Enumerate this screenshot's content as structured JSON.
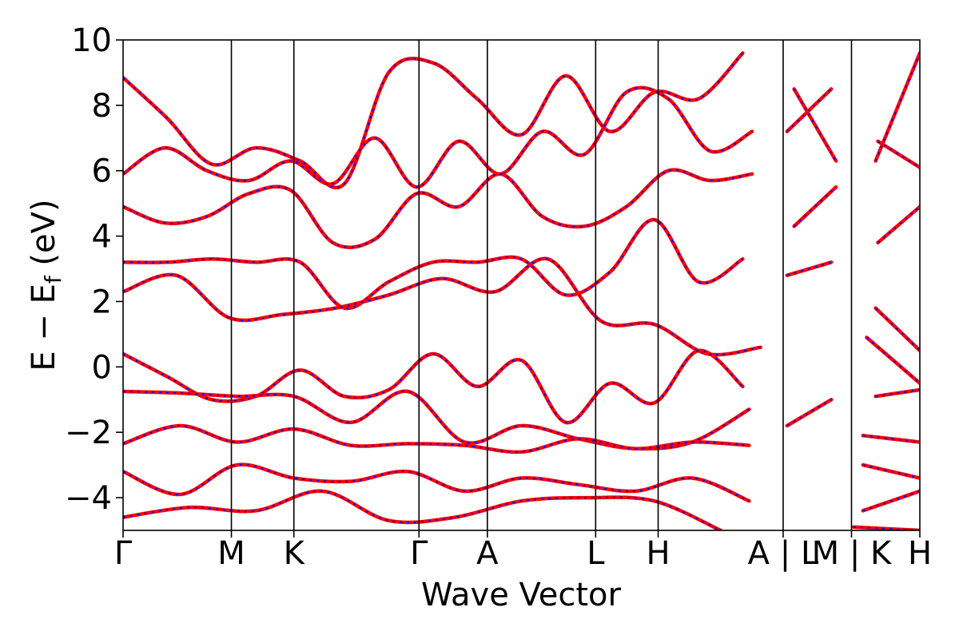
{
  "chart_data": {
    "type": "line",
    "title": "",
    "xlabel": "Wave Vector",
    "ylabel_parts": [
      "E − E",
      "f",
      " (eV)"
    ],
    "ylim": [
      -5,
      10
    ],
    "yticks": [
      10,
      8,
      6,
      4,
      2,
      0,
      -2,
      -4
    ],
    "ytick_labels": [
      "10",
      "8",
      "6",
      "4",
      "2",
      "0",
      "−2",
      "−4"
    ],
    "grid": false,
    "legend": "none",
    "kpath_labels": [
      "Γ",
      "M",
      "K",
      "Γ",
      "A",
      "L",
      "H",
      "A | L",
      "M | K",
      "H"
    ],
    "kpath_positions": [
      0.0,
      1.0,
      1.577,
      2.732,
      3.363,
      4.363,
      4.94,
      6.094,
      6.725,
      7.356
    ],
    "band_break_positions": [
      6.094,
      6.725
    ],
    "colors": {
      "band_line": "#ff0000",
      "band_dash": "#0000ff",
      "vline": "#000000"
    },
    "series": [
      {
        "name": "",
        "values_y": [
          8.85,
          7.6,
          6.2,
          6.7,
          6.3,
          5.6,
          9.0,
          9.3,
          8.2,
          7.1,
          8.9,
          7.2,
          8.4,
          8.2,
          9.6,
          7.2,
          8.5,
          6.3,
          9.6
        ]
      },
      {
        "name": "",
        "values_y": [
          5.9,
          6.7,
          6.0,
          5.7,
          6.3,
          5.6,
          7.0,
          5.5,
          6.9,
          5.9,
          7.2,
          6.5,
          8.4,
          8.2,
          6.6,
          7.2,
          8.5,
          6.3,
          6.9,
          6.1
        ]
      },
      {
        "name": "",
        "values_y": [
          4.9,
          4.4,
          4.6,
          5.3,
          5.4,
          3.8,
          3.9,
          5.3,
          4.9,
          5.9,
          4.6,
          4.3,
          4.9,
          6.0,
          5.7,
          5.9,
          4.3,
          5.5,
          3.8,
          4.9
        ]
      },
      {
        "name": "",
        "values_y": [
          3.2,
          3.2,
          3.3,
          3.2,
          3.2,
          1.8,
          2.6,
          3.2,
          3.2,
          3.3,
          2.2,
          2.9,
          4.5,
          2.6,
          3.3,
          2.8,
          3.2,
          1.8,
          0.5
        ]
      },
      {
        "name": "",
        "values_y": [
          2.3,
          2.8,
          1.5,
          1.6,
          1.8,
          2.2,
          2.7,
          2.3,
          3.3,
          1.4,
          1.3,
          0.4,
          0.6,
          1.4,
          0.9,
          -0.5
        ]
      },
      {
        "name": "",
        "values_y": [
          0.4,
          -0.3,
          -1.0,
          -0.9,
          -0.1,
          -0.9,
          -0.7,
          0.4,
          -0.6,
          0.2,
          -1.7,
          -0.5,
          -1.1,
          0.5,
          -0.6,
          -1.8,
          -1.0,
          -0.9,
          -0.7
        ]
      },
      {
        "name": "",
        "values_y": [
          -0.75,
          -0.8,
          -0.9,
          -0.9,
          -1.7,
          -0.75,
          -2.3,
          -1.8,
          -2.2,
          -2.5,
          -2.3,
          -1.3,
          -1.5,
          -2.1,
          -2.3
        ]
      },
      {
        "name": "",
        "values_y": [
          -2.35,
          -1.8,
          -2.3,
          -1.9,
          -2.4,
          -2.35,
          -2.4,
          -2.6,
          -2.2,
          -2.5,
          -2.3,
          -2.4,
          -2.8,
          -3.0,
          -3.4
        ]
      },
      {
        "name": "",
        "values_y": [
          -3.2,
          -3.9,
          -3.0,
          -3.4,
          -3.5,
          -3.2,
          -3.8,
          -3.4,
          -3.6,
          -3.8,
          -3.4,
          -4.1,
          -3.7,
          -4.4,
          -3.8
        ]
      },
      {
        "name": "",
        "values_y": [
          -4.6,
          -4.3,
          -4.4,
          -3.8,
          -4.7,
          -4.6,
          -4.1,
          -4.0,
          -4.1,
          -5.0,
          -4.2,
          -4.9,
          -5.0
        ]
      }
    ]
  }
}
